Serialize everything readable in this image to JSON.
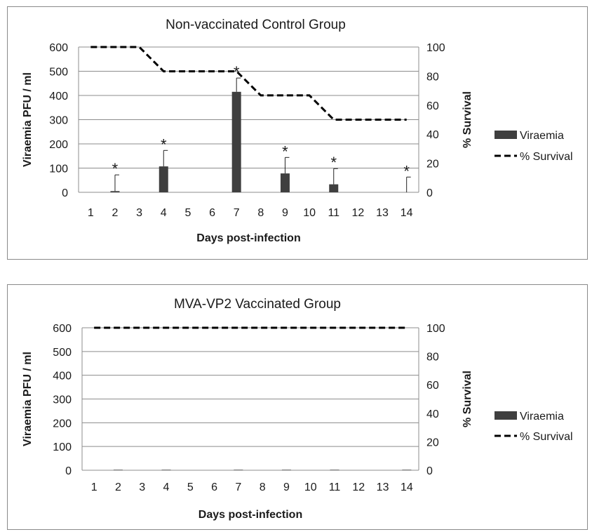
{
  "chart_data": [
    {
      "type": "bar",
      "title": "Non-vaccinated Control Group",
      "xlabel": "Days post-infection",
      "ylabel": "Viraemia PFU / ml",
      "y2label": "% Survival",
      "categories": [
        "1",
        "2",
        "3",
        "4",
        "5",
        "6",
        "7",
        "8",
        "9",
        "10",
        "11",
        "12",
        "13",
        "14"
      ],
      "ylim": [
        0,
        600
      ],
      "yticks": [
        0,
        100,
        200,
        300,
        400,
        500,
        600
      ],
      "y2lim": [
        0,
        100
      ],
      "y2ticks": [
        0,
        20,
        40,
        60,
        80,
        100
      ],
      "grid": true,
      "legend_position": "right",
      "bar_color": "#3f3f3f",
      "line_color": "#000000",
      "series": [
        {
          "name": "Viraemia",
          "kind": "bar",
          "axis": "left",
          "values": [
            0,
            5,
            0,
            107,
            0,
            0,
            415,
            0,
            78,
            0,
            33,
            0,
            0,
            0
          ],
          "error_upper": [
            0,
            72,
            0,
            173,
            0,
            0,
            472,
            0,
            144,
            0,
            98,
            0,
            0,
            63
          ],
          "significance": [
            "",
            "*",
            "",
            "*",
            "",
            "",
            "*",
            "",
            "*",
            "",
            "*",
            "",
            "",
            "*"
          ]
        },
        {
          "name": "% Survival",
          "kind": "line",
          "style": "dashed",
          "axis": "right",
          "values": [
            100,
            100,
            100,
            83.3,
            83.3,
            83.3,
            83.3,
            66.7,
            66.7,
            66.7,
            50,
            50,
            50,
            50
          ]
        }
      ]
    },
    {
      "type": "bar",
      "title": "MVA-VP2 Vaccinated Group",
      "xlabel": "Days post-infection",
      "ylabel": "Viraemia PFU / ml",
      "y2label": "% Survival",
      "categories": [
        "1",
        "2",
        "3",
        "4",
        "5",
        "6",
        "7",
        "8",
        "9",
        "10",
        "11",
        "12",
        "13",
        "14"
      ],
      "ylim": [
        0,
        600
      ],
      "yticks": [
        0,
        100,
        200,
        300,
        400,
        500,
        600
      ],
      "y2lim": [
        0,
        100
      ],
      "y2ticks": [
        0,
        20,
        40,
        60,
        80,
        100
      ],
      "grid": true,
      "legend_position": "right",
      "bar_color": "#3f3f3f",
      "line_color": "#000000",
      "series": [
        {
          "name": "Viraemia",
          "kind": "bar",
          "axis": "left",
          "values": [
            0,
            2,
            0,
            2,
            0,
            0,
            2,
            0,
            2,
            0,
            2,
            0,
            0,
            2
          ],
          "error_upper": [],
          "significance": []
        },
        {
          "name": "% Survival",
          "kind": "line",
          "style": "dashed",
          "axis": "right",
          "values": [
            100,
            100,
            100,
            100,
            100,
            100,
            100,
            100,
            100,
            100,
            100,
            100,
            100,
            100
          ]
        }
      ]
    }
  ]
}
